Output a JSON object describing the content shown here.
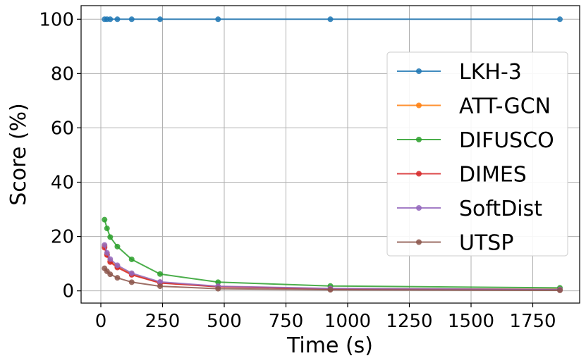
{
  "chart_data": {
    "type": "line",
    "xlabel": "Time (s)",
    "ylabel": "Score (%)",
    "xlim": [
      -80,
      1940
    ],
    "ylim": [
      -4.5,
      105
    ],
    "xticks": [
      0,
      250,
      500,
      750,
      1000,
      1250,
      1500,
      1750
    ],
    "yticks": [
      0,
      20,
      40,
      60,
      80,
      100
    ],
    "grid": true,
    "legend_position": "center-right",
    "series": [
      {
        "name": "LKH-3",
        "color": "#1f77b4",
        "points": [
          [
            15,
            100
          ],
          [
            25,
            100
          ],
          [
            38,
            100
          ],
          [
            67,
            100
          ],
          [
            125,
            100
          ],
          [
            240,
            100
          ],
          [
            475,
            100
          ],
          [
            930,
            100
          ],
          [
            1860,
            100
          ]
        ]
      },
      {
        "name": "ATT-GCN",
        "color": "#ff7f0e",
        "points": [
          [
            15,
            16.5
          ],
          [
            25,
            13.5
          ],
          [
            38,
            11.0
          ],
          [
            67,
            9.0
          ],
          [
            125,
            6.2
          ],
          [
            240,
            3.0
          ],
          [
            475,
            1.6
          ],
          [
            930,
            0.8
          ],
          [
            1860,
            0.6
          ]
        ]
      },
      {
        "name": "DIFUSCO",
        "color": "#2ca02c",
        "points": [
          [
            15,
            26.2
          ],
          [
            25,
            23.0
          ],
          [
            38,
            19.8
          ],
          [
            67,
            16.3
          ],
          [
            125,
            11.6
          ],
          [
            240,
            6.2
          ],
          [
            475,
            3.2
          ],
          [
            930,
            1.8
          ],
          [
            1860,
            1.1
          ]
        ]
      },
      {
        "name": "DIMES",
        "color": "#d62728",
        "points": [
          [
            15,
            15.9
          ],
          [
            25,
            13.2
          ],
          [
            38,
            10.6
          ],
          [
            67,
            8.6
          ],
          [
            125,
            5.9
          ],
          [
            240,
            2.9
          ],
          [
            475,
            1.5
          ],
          [
            930,
            0.7
          ],
          [
            1860,
            0.4
          ]
        ]
      },
      {
        "name": "SoftDist",
        "color": "#9467bd",
        "points": [
          [
            15,
            16.9
          ],
          [
            25,
            14.0
          ],
          [
            38,
            11.7
          ],
          [
            67,
            9.4
          ],
          [
            125,
            6.5
          ],
          [
            240,
            3.3
          ],
          [
            475,
            1.7
          ],
          [
            930,
            0.9
          ],
          [
            1860,
            0.5
          ]
        ]
      },
      {
        "name": "UTSP",
        "color": "#8c564b",
        "points": [
          [
            15,
            8.3
          ],
          [
            25,
            7.2
          ],
          [
            38,
            6.1
          ],
          [
            67,
            4.8
          ],
          [
            125,
            3.2
          ],
          [
            240,
            1.7
          ],
          [
            475,
            0.8
          ],
          [
            930,
            0.4
          ],
          [
            1860,
            0.2
          ]
        ]
      }
    ]
  }
}
